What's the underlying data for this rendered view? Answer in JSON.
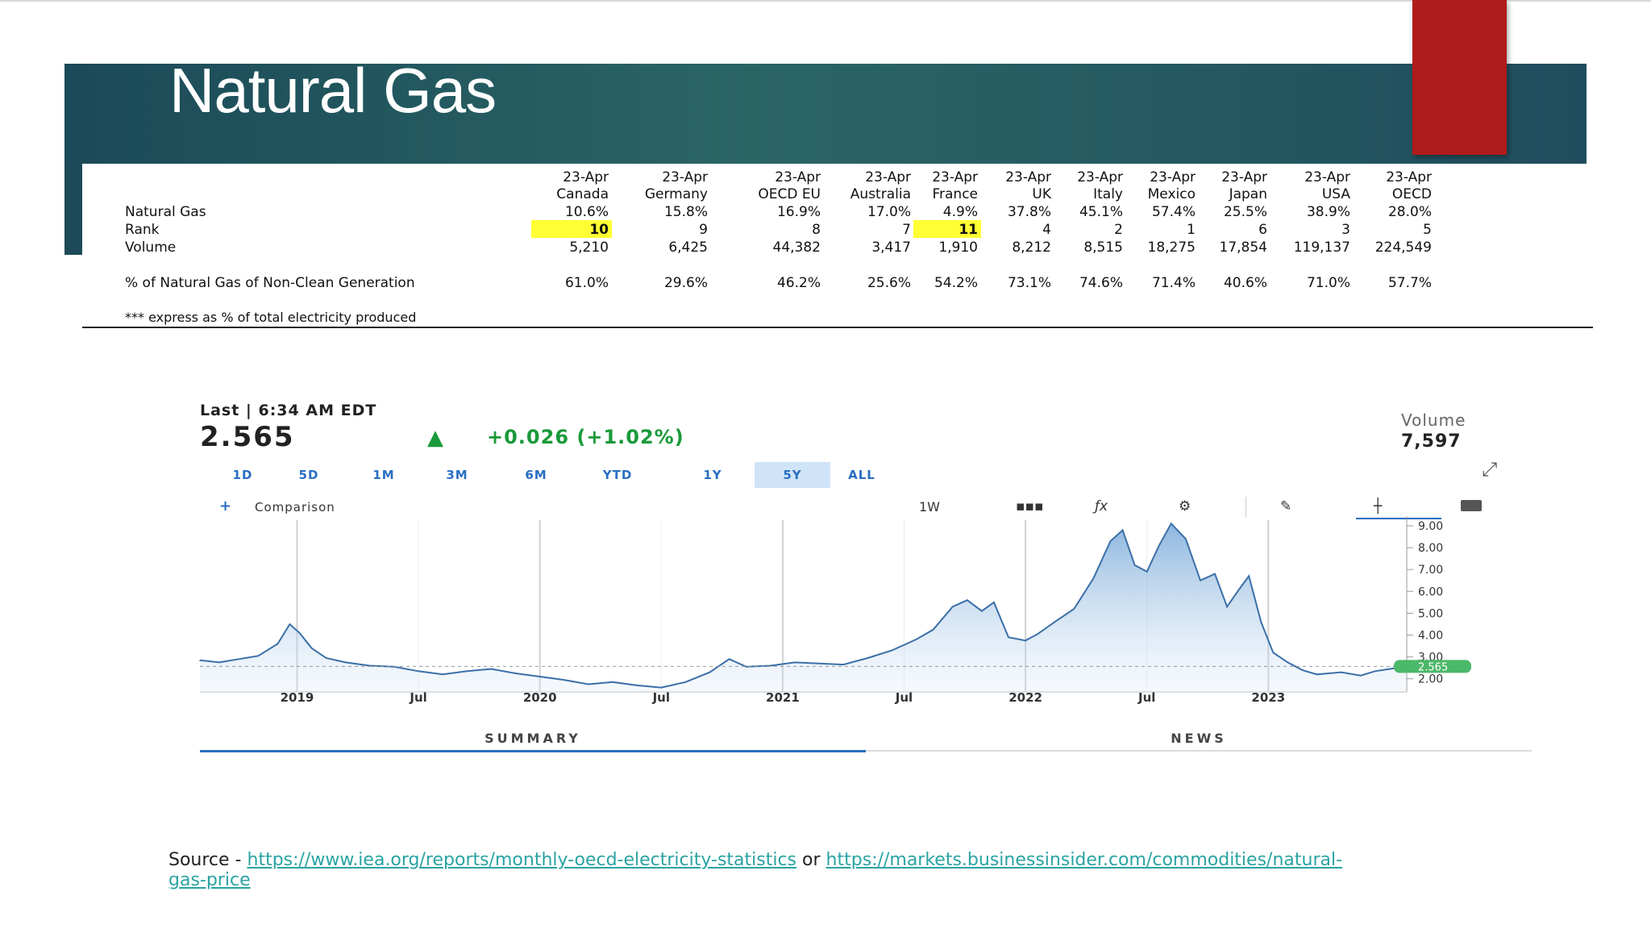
{
  "slide": {
    "title": "Natural Gas"
  },
  "table": {
    "columns": [
      {
        "date": "23-Apr",
        "country": "Canada",
        "share": "10.6%",
        "rank": "10",
        "volume": "5,210",
        "non_clean": "61.0%",
        "highlight_rank": true
      },
      {
        "date": "23-Apr",
        "country": "Germany",
        "share": "15.8%",
        "rank": "9",
        "volume": "6,425",
        "non_clean": "29.6%",
        "highlight_rank": false
      },
      {
        "date": "23-Apr",
        "country": "OECD EU",
        "share": "16.9%",
        "rank": "8",
        "volume": "44,382",
        "non_clean": "46.2%",
        "highlight_rank": false
      },
      {
        "date": "23-Apr",
        "country": "Australia",
        "share": "17.0%",
        "rank": "7",
        "volume": "3,417",
        "non_clean": "25.6%",
        "highlight_rank": false
      },
      {
        "date": "23-Apr",
        "country": "France",
        "share": "4.9%",
        "rank": "11",
        "volume": "1,910",
        "non_clean": "54.2%",
        "highlight_rank": true
      },
      {
        "date": "23-Apr",
        "country": "UK",
        "share": "37.8%",
        "rank": "4",
        "volume": "8,212",
        "non_clean": "73.1%",
        "highlight_rank": false
      },
      {
        "date": "23-Apr",
        "country": "Italy",
        "share": "45.1%",
        "rank": "2",
        "volume": "8,515",
        "non_clean": "74.6%",
        "highlight_rank": false
      },
      {
        "date": "23-Apr",
        "country": "Mexico",
        "share": "57.4%",
        "rank": "1",
        "volume": "18,275",
        "non_clean": "71.4%",
        "highlight_rank": false
      },
      {
        "date": "23-Apr",
        "country": "Japan",
        "share": "25.5%",
        "rank": "6",
        "volume": "17,854",
        "non_clean": "40.6%",
        "highlight_rank": false
      },
      {
        "date": "23-Apr",
        "country": "USA",
        "share": "38.9%",
        "rank": "3",
        "volume": "119,137",
        "non_clean": "71.0%",
        "highlight_rank": false
      },
      {
        "date": "23-Apr",
        "country": "OECD",
        "share": "28.0%",
        "rank": "5",
        "volume": "224,549",
        "non_clean": "57.7%",
        "highlight_rank": false
      }
    ],
    "row_labels": {
      "share": "Natural Gas",
      "rank": "Rank",
      "volume": "Volume",
      "non_clean": "% of Natural Gas of Non-Clean Generation"
    },
    "footnote": "*** express as % of total electricity produced",
    "highlight_color": "#ffff33"
  },
  "market": {
    "timestamp": "Last | 6:34 AM EDT",
    "price": "2.565",
    "change": "+0.026 (+1.02%)",
    "volume_label": "Volume",
    "volume_value": "7,597",
    "ranges": [
      "1D",
      "5D",
      "1M",
      "3M",
      "6M",
      "YTD",
      "1Y",
      "5Y",
      "ALL"
    ],
    "active_range": "5Y",
    "comparison_label": "Comparison",
    "interval_label": "1W",
    "tools": [
      "candles-icon",
      "function-icon",
      "gear-icon",
      "pencil-icon",
      "crosshair-icon",
      "camera-icon"
    ],
    "bottom_tabs": [
      "SUMMARY",
      "NEWS"
    ],
    "active_bottom_tab": "SUMMARY",
    "accent_color": "#2a6ec2",
    "up_color": "#1a9a3a",
    "price_tag_color": "#4cb86a"
  },
  "chart_data": {
    "type": "area",
    "x_ticks": [
      "2019",
      "Jul",
      "2020",
      "Jul",
      "2021",
      "Jul",
      "2022",
      "Jul",
      "2023"
    ],
    "y_ticks": [
      "9.00",
      "8.00",
      "7.00",
      "6.00",
      "5.00",
      "4.00",
      "3.00",
      "2.00"
    ],
    "ylim": [
      1.4,
      9.0
    ],
    "current_value_label": "2.565",
    "series": [
      {
        "values": [
          [
            2018.6,
            2.85
          ],
          [
            2018.68,
            2.75
          ],
          [
            2018.76,
            2.9
          ],
          [
            2018.84,
            3.05
          ],
          [
            2018.92,
            3.6
          ],
          [
            2018.97,
            4.5
          ],
          [
            2019.01,
            4.1
          ],
          [
            2019.06,
            3.4
          ],
          [
            2019.12,
            2.95
          ],
          [
            2019.2,
            2.75
          ],
          [
            2019.3,
            2.6
          ],
          [
            2019.4,
            2.55
          ],
          [
            2019.5,
            2.35
          ],
          [
            2019.6,
            2.2
          ],
          [
            2019.7,
            2.35
          ],
          [
            2019.8,
            2.45
          ],
          [
            2019.9,
            2.25
          ],
          [
            2020.0,
            2.1
          ],
          [
            2020.1,
            1.95
          ],
          [
            2020.2,
            1.75
          ],
          [
            2020.3,
            1.85
          ],
          [
            2020.4,
            1.7
          ],
          [
            2020.5,
            1.6
          ],
          [
            2020.6,
            1.85
          ],
          [
            2020.7,
            2.3
          ],
          [
            2020.78,
            2.9
          ],
          [
            2020.85,
            2.55
          ],
          [
            2020.95,
            2.6
          ],
          [
            2021.05,
            2.75
          ],
          [
            2021.15,
            2.7
          ],
          [
            2021.25,
            2.65
          ],
          [
            2021.35,
            2.95
          ],
          [
            2021.45,
            3.3
          ],
          [
            2021.55,
            3.8
          ],
          [
            2021.62,
            4.25
          ],
          [
            2021.7,
            5.3
          ],
          [
            2021.76,
            5.6
          ],
          [
            2021.82,
            5.1
          ],
          [
            2021.87,
            5.5
          ],
          [
            2021.93,
            3.9
          ],
          [
            2022.0,
            3.75
          ],
          [
            2022.05,
            4.05
          ],
          [
            2022.12,
            4.6
          ],
          [
            2022.2,
            5.2
          ],
          [
            2022.28,
            6.6
          ],
          [
            2022.35,
            8.3
          ],
          [
            2022.4,
            8.8
          ],
          [
            2022.45,
            7.2
          ],
          [
            2022.5,
            6.9
          ],
          [
            2022.55,
            8.1
          ],
          [
            2022.6,
            9.1
          ],
          [
            2022.66,
            8.4
          ],
          [
            2022.72,
            6.5
          ],
          [
            2022.78,
            6.8
          ],
          [
            2022.83,
            5.3
          ],
          [
            2022.88,
            6.1
          ],
          [
            2022.92,
            6.7
          ],
          [
            2022.97,
            4.6
          ],
          [
            2023.02,
            3.2
          ],
          [
            2023.08,
            2.75
          ],
          [
            2023.14,
            2.4
          ],
          [
            2023.2,
            2.2
          ],
          [
            2023.3,
            2.3
          ],
          [
            2023.38,
            2.15
          ],
          [
            2023.44,
            2.35
          ],
          [
            2023.5,
            2.45
          ],
          [
            2023.57,
            2.565
          ]
        ]
      }
    ]
  },
  "source": {
    "prefix": "Source - ",
    "link1": "https://www.iea.org/reports/monthly-oecd-electricity-statistics",
    "joiner": " or ",
    "link2": "https://markets.businessinsider.com/commodities/natural-gas-price"
  }
}
